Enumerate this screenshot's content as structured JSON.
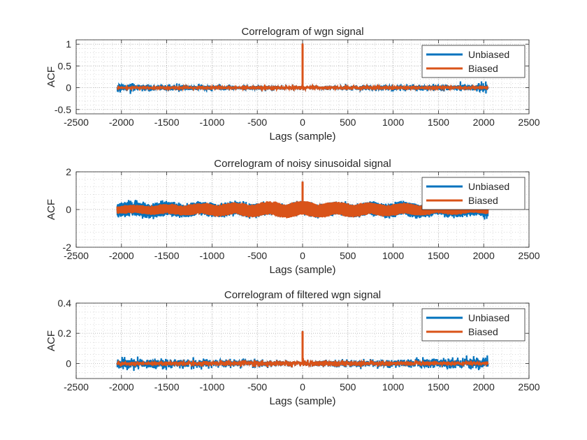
{
  "chart_data": [
    {
      "type": "line",
      "title": "Correlogram of wgn signal",
      "xlabel": "Lags (sample)",
      "ylabel": "ACF",
      "xlim": [
        -2500,
        2500
      ],
      "ylim": [
        -0.6,
        1.1
      ],
      "xticks": [
        -2500,
        -2000,
        -1500,
        -1000,
        -500,
        0,
        500,
        1000,
        1500,
        2000,
        2500
      ],
      "xtick_labels": [
        "-2500",
        "-2000",
        "-1500",
        "-1000",
        "-500",
        "0",
        "500",
        "1000",
        "1500",
        "2000",
        "2500"
      ],
      "yticks": [
        -0.5,
        0,
        0.5,
        1
      ],
      "ytick_labels": [
        "-0.5",
        "0",
        "0.5",
        "1"
      ],
      "grid": true,
      "minor_grid": true,
      "legend": "top-right",
      "series": [
        {
          "name": "Unbiased",
          "color": "#0072BD",
          "lag_range": [
            -2047,
            2047
          ],
          "center_value": 1.0,
          "noise_std": 0.022,
          "edge_amplitude": 1.6
        },
        {
          "name": "Biased",
          "color": "#D95319",
          "lag_range": [
            -2047,
            2047
          ],
          "center_value": 1.0,
          "noise_std": 0.022
        }
      ]
    },
    {
      "type": "line",
      "title": "Correlogram of noisy sinusoidal signal",
      "xlabel": "Lags (sample)",
      "ylabel": "ACF",
      "xlim": [
        -2500,
        2500
      ],
      "ylim": [
        -2,
        2
      ],
      "xticks": [
        -2500,
        -2000,
        -1500,
        -1000,
        -500,
        0,
        500,
        1000,
        1500,
        2000,
        2500
      ],
      "xtick_labels": [
        "-2500",
        "-2000",
        "-1500",
        "-1000",
        "-500",
        "0",
        "500",
        "1000",
        "1500",
        "2000",
        "2500"
      ],
      "yticks": [
        -2,
        0,
        2
      ],
      "ytick_labels": [
        "-2",
        "0",
        "2"
      ],
      "grid": true,
      "minor_grid": true,
      "legend": "top-right",
      "series": [
        {
          "name": "Unbiased",
          "color": "#0072BD",
          "lag_range": [
            -2047,
            2047
          ],
          "center_value": 1.45,
          "oscillation_amplitude": 0.45,
          "edge_amplitude": 1.5
        },
        {
          "name": "Biased",
          "color": "#D95319",
          "lag_range": [
            -2047,
            2047
          ],
          "center_value": 1.45,
          "oscillation_amplitude": 0.45
        }
      ]
    },
    {
      "type": "line",
      "title": "Correlogram of filtered wgn signal",
      "xlabel": "Lags (sample)",
      "ylabel": "ACF",
      "xlim": [
        -2500,
        2500
      ],
      "ylim": [
        -0.1,
        0.4
      ],
      "xticks": [
        -2500,
        -2000,
        -1500,
        -1000,
        -500,
        0,
        500,
        1000,
        1500,
        2000,
        2500
      ],
      "xtick_labels": [
        "-2500",
        "-2000",
        "-1500",
        "-1000",
        "-500",
        "0",
        "500",
        "1000",
        "1500",
        "2000",
        "2500"
      ],
      "yticks": [
        0,
        0.2,
        0.4
      ],
      "ytick_labels": [
        "0",
        "0.2",
        "0.4"
      ],
      "grid": true,
      "minor_grid": true,
      "legend": "top-right",
      "series": [
        {
          "name": "Unbiased",
          "color": "#0072BD",
          "lag_range": [
            -2047,
            2047
          ],
          "center_value": 0.21,
          "noise_std": 0.01,
          "edge_amplitude": 0.38
        },
        {
          "name": "Biased",
          "color": "#D95319",
          "lag_range": [
            -2047,
            2047
          ],
          "center_value": 0.21,
          "noise_std": 0.01
        }
      ]
    }
  ]
}
